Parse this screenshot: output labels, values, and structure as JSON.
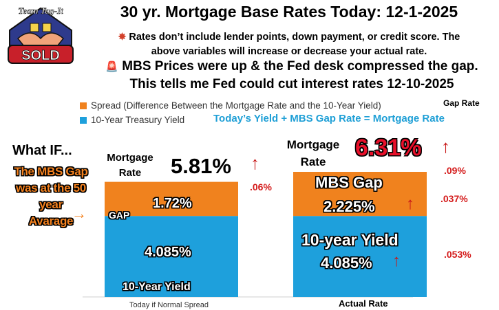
{
  "logo": {
    "top_text": "Team Tag-It",
    "badge": "SOLD"
  },
  "header": {
    "title": "30 yr. Mortgage Base Rates Today: 12-1-2025",
    "note1_line1": "Rates don’t include lender points, down payment, or credit score. The",
    "note1_line2": "above variables will increase or decrease your actual rate.",
    "note2_line1": "MBS Prices were up & the Fed desk compressed the gap.",
    "note2_line2": "This tells me Fed could cut interest rates 12-10-2025"
  },
  "legend": {
    "spread": "Spread (Difference Between the Mortgage Rate and the 10-Year Yield)",
    "treasury": "10-Year Treasury Yield",
    "gap_rate_header": "Gap Rate",
    "formula": "Today’s  Yield +  MBS Gap Rate = Mortgage Rate"
  },
  "sidebar": {
    "what_if": "What IF...",
    "mbs_gap_lines": [
      "The MBS Gap",
      "was at the 50",
      "year",
      "Avarage"
    ]
  },
  "chart_data": {
    "type": "bar",
    "stacked": true,
    "categories": [
      "Today if Normal Spread",
      "Actual Rate"
    ],
    "series": [
      {
        "name": "10-Year Treasury Yield",
        "values": [
          4.085,
          4.085
        ],
        "color": "#1ea0dc"
      },
      {
        "name": "Spread (Difference Between the Mortgage Rate and the 10-Year Yield)",
        "values": [
          1.72,
          2.225
        ],
        "color": "#f0821e"
      }
    ],
    "totals": [
      5.81,
      6.31
    ],
    "ylim": [
      0,
      6.31
    ]
  },
  "bars": {
    "left": {
      "mortgage_label_1": "Mortgage",
      "mortgage_label_2": "Rate",
      "total_label": "5.81%",
      "change": ".06%",
      "gap_tag": "GAP",
      "spread_label": "1.72%",
      "yield_label": "4.085%",
      "bottom_label": "10-Year Yield",
      "category_label": "Today if Normal Spread"
    },
    "right": {
      "mortgage_label_1": "Mortgage",
      "mortgage_label_2": "Rate",
      "total_label": "6.31%",
      "total_change": ".09%",
      "spread_title": "MBS Gap",
      "spread_label": "2.225%",
      "spread_change": ".037%",
      "yield_title": "10-year Yield",
      "yield_label": "4.085%",
      "yield_change": ".053%",
      "category_label": "Actual Rate"
    }
  },
  "colors": {
    "treasury": "#1ea0dc",
    "spread": "#f0821e",
    "accent_red": "#d41a1a",
    "formula_blue": "#1e9fd6"
  }
}
